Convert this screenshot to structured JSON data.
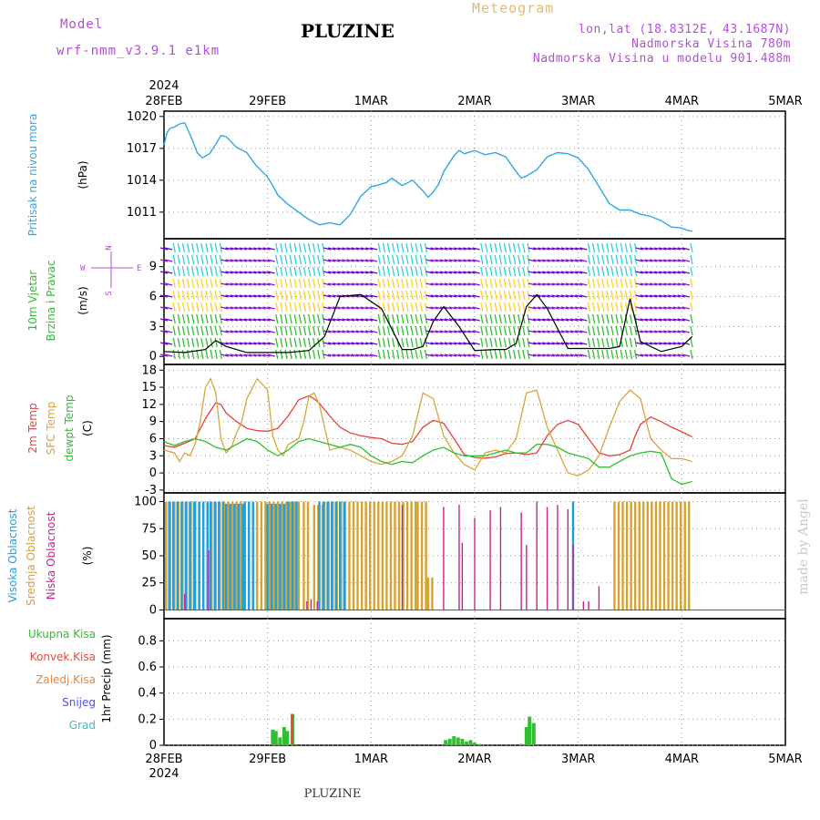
{
  "header": {
    "model_label": "Model",
    "model_name": "wrf-nmm_v3.9.1 e1km",
    "title": "PLUZINE",
    "subtitle": "Meteogram",
    "lonlat": "lon,lat (18.8312E, 43.1687N)",
    "elevation": "Nadmorska Visina 780m",
    "model_elevation": "Nadmorska Visina u modelu 901.488m",
    "footer": "PLUZINE",
    "watermark": "made by Angel"
  },
  "colors": {
    "pressure": "#2fa6e8",
    "t2m": "#e8413a",
    "sfc": "#d9a53a",
    "dew": "#2ec12e",
    "high_cloud": "#1aa0e6",
    "mid_cloud": "#d6a32e",
    "low_cloud": "#c4248e",
    "precip": "#2fbf2f",
    "conv": "#e84a3a",
    "frz": "#e8853a",
    "snow": "#5050e0",
    "hail": "#33c2c2",
    "model": "#b44fd8",
    "meteogram": "#e8b96a"
  },
  "chart_data": [
    {
      "type": "line",
      "name": "pressure",
      "ylabel": "Pritisak na nivou mora",
      "unit": "(hPa)",
      "ylim": [
        1008.5,
        1020.5
      ],
      "yticks": [
        1011,
        1014,
        1017,
        1020
      ],
      "series": [
        {
          "x": [
            0,
            0.03,
            0.06,
            0.1,
            0.15,
            0.2,
            0.26,
            0.32,
            0.37,
            0.44,
            0.5,
            0.55,
            0.6,
            0.7,
            0.8,
            0.88,
            0.93,
            1.0,
            1.05,
            1.1,
            1.2,
            1.3,
            1.4,
            1.5,
            1.55,
            1.6,
            1.65,
            1.7,
            1.8,
            1.9,
            2.0,
            2.05,
            2.15,
            2.2,
            2.3,
            2.4,
            2.5,
            2.55,
            2.6,
            2.65,
            2.7,
            2.8,
            2.85,
            2.9,
            3.0,
            3.1,
            3.2,
            3.3,
            3.4,
            3.45,
            3.5,
            3.6,
            3.7,
            3.8,
            3.9,
            4.0,
            4.1,
            4.2,
            4.3,
            4.4,
            4.5,
            4.55,
            4.6,
            4.7,
            4.8,
            4.9,
            5.0,
            5.05,
            5.1
          ],
          "y": [
            1017.3,
            1018.5,
            1018.9,
            1019.0,
            1019.3,
            1019.4,
            1018.1,
            1016.6,
            1016.1,
            1016.5,
            1017.4,
            1018.2,
            1018.1,
            1017.1,
            1016.6,
            1015.5,
            1015.0,
            1014.3,
            1013.5,
            1012.6,
            1011.7,
            1011.0,
            1010.3,
            1009.8,
            1009.9,
            1010.0,
            1009.9,
            1009.8,
            1010.8,
            1012.5,
            1013.4,
            1013.5,
            1013.8,
            1014.2,
            1013.5,
            1014.0,
            1013.0,
            1012.4,
            1012.9,
            1013.6,
            1014.8,
            1016.3,
            1016.8,
            1016.5,
            1016.8,
            1016.4,
            1016.6,
            1016.2,
            1014.8,
            1014.2,
            1014.4,
            1015.0,
            1016.2,
            1016.6,
            1016.5,
            1016.1,
            1015.0,
            1013.4,
            1011.8,
            1011.2,
            1011.2,
            1011.0,
            1010.8,
            1010.6,
            1010.2,
            1009.6,
            1009.5,
            1009.3,
            1009.2
          ]
        }
      ]
    },
    {
      "type": "scatter",
      "name": "wind",
      "ylabel": "10m Vjetar Brzina i Pravac",
      "unit": "(m/s)",
      "ylim": [
        -0.8,
        11.8
      ],
      "yticks": [
        0,
        3,
        6,
        9
      ],
      "compass": [
        "N",
        "W",
        "E",
        "S"
      ],
      "series": [
        {
          "name": "speed",
          "x": [
            0,
            0.2,
            0.4,
            0.5,
            0.6,
            0.8,
            1.0,
            1.2,
            1.3,
            1.4,
            1.55,
            1.7,
            1.9,
            2.1,
            2.3,
            2.4,
            2.5,
            2.6,
            2.7,
            2.85,
            3.0,
            3.2,
            3.3,
            3.4,
            3.5,
            3.6,
            3.7,
            3.9,
            4.1,
            4.3,
            4.4,
            4.5,
            4.6,
            4.8,
            5.0,
            5.1
          ],
          "y": [
            0.5,
            0.4,
            0.7,
            1.6,
            1.0,
            0.4,
            0.4,
            0.4,
            0.5,
            0.6,
            2.0,
            6.0,
            6.2,
            4.8,
            0.7,
            0.7,
            1.0,
            3.5,
            5.0,
            3.0,
            0.6,
            0.7,
            0.7,
            1.3,
            5.0,
            6.2,
            4.8,
            0.8,
            0.8,
            0.8,
            1.0,
            5.8,
            1.5,
            0.5,
            1.0,
            2.0
          ]
        }
      ]
    },
    {
      "type": "line",
      "name": "temperature",
      "series_labels": [
        "2m Temp",
        "SFC Temp",
        "dewpt Temp"
      ],
      "unit": "(C)",
      "ylim": [
        -3.5,
        19
      ],
      "yticks": [
        -3,
        0,
        3,
        6,
        9,
        12,
        15,
        18
      ],
      "series": [
        {
          "name": "2m Temp",
          "x": [
            0,
            0.1,
            0.2,
            0.3,
            0.4,
            0.5,
            0.55,
            0.6,
            0.7,
            0.8,
            0.9,
            1.0,
            1.1,
            1.2,
            1.3,
            1.4,
            1.45,
            1.5,
            1.6,
            1.7,
            1.8,
            1.9,
            2.0,
            2.1,
            2.2,
            2.3,
            2.4,
            2.5,
            2.6,
            2.7,
            2.8,
            2.9,
            3.0,
            3.1,
            3.2,
            3.3,
            3.4,
            3.5,
            3.6,
            3.7,
            3.8,
            3.9,
            4.0,
            4.1,
            4.2,
            4.3,
            4.4,
            4.5,
            4.55,
            4.6,
            4.7,
            4.8,
            4.9,
            5.0,
            5.1
          ],
          "y": [
            4.8,
            4.5,
            5.2,
            6.0,
            9.5,
            12.3,
            12.0,
            10.5,
            9.0,
            7.8,
            7.4,
            7.3,
            7.8,
            10.0,
            12.8,
            13.5,
            13.0,
            12.2,
            10.0,
            8.0,
            7.0,
            6.5,
            6.2,
            6.0,
            5.2,
            5.0,
            5.5,
            8.0,
            9.2,
            8.7,
            6.0,
            3.2,
            2.7,
            2.6,
            2.8,
            3.4,
            3.5,
            3.2,
            3.5,
            6.5,
            8.5,
            9.2,
            8.5,
            6.0,
            3.5,
            3.0,
            3.2,
            4.0,
            6.5,
            8.5,
            9.8,
            9.0,
            8.0,
            7.2,
            6.3
          ]
        },
        {
          "name": "SFC Temp",
          "x": [
            0,
            0.1,
            0.15,
            0.2,
            0.25,
            0.3,
            0.35,
            0.4,
            0.45,
            0.5,
            0.55,
            0.6,
            0.65,
            0.7,
            0.75,
            0.8,
            0.9,
            1.0,
            1.05,
            1.1,
            1.15,
            1.2,
            1.3,
            1.35,
            1.4,
            1.45,
            1.5,
            1.55,
            1.6,
            1.7,
            1.8,
            1.9,
            2.0,
            2.1,
            2.2,
            2.3,
            2.4,
            2.5,
            2.6,
            2.7,
            2.8,
            2.9,
            3.0,
            3.1,
            3.2,
            3.3,
            3.4,
            3.5,
            3.6,
            3.7,
            3.8,
            3.9,
            4.0,
            4.1,
            4.2,
            4.3,
            4.4,
            4.5,
            4.6,
            4.7,
            4.8,
            4.9,
            5.0,
            5.1
          ],
          "y": [
            4.0,
            3.5,
            2.0,
            3.5,
            3.0,
            5.0,
            9.0,
            15.0,
            16.5,
            14.0,
            6.0,
            3.5,
            4.5,
            7.0,
            9.0,
            13.0,
            16.5,
            14.5,
            6.5,
            4.0,
            3.0,
            5.0,
            6.0,
            9.0,
            13.5,
            14.0,
            12.0,
            8.0,
            4.0,
            4.5,
            4.0,
            3.0,
            2.0,
            1.5,
            2.0,
            3.0,
            6.5,
            14.0,
            13.0,
            6.5,
            3.5,
            1.5,
            0.5,
            3.5,
            4.0,
            3.5,
            6.0,
            14.0,
            14.5,
            8.0,
            4.0,
            0.0,
            -0.5,
            0.5,
            3.0,
            8.0,
            12.5,
            14.5,
            13.0,
            6.0,
            4.0,
            2.5,
            2.5,
            2.0
          ]
        },
        {
          "name": "dewpt Temp",
          "x": [
            0,
            0.1,
            0.2,
            0.3,
            0.4,
            0.5,
            0.6,
            0.7,
            0.8,
            0.9,
            1.0,
            1.1,
            1.2,
            1.3,
            1.4,
            1.5,
            1.6,
            1.7,
            1.8,
            1.9,
            2.0,
            2.1,
            2.2,
            2.3,
            2.4,
            2.5,
            2.6,
            2.7,
            2.8,
            2.9,
            3.0,
            3.1,
            3.2,
            3.3,
            3.4,
            3.5,
            3.6,
            3.7,
            3.8,
            3.9,
            4.0,
            4.1,
            4.2,
            4.3,
            4.4,
            4.5,
            4.6,
            4.7,
            4.8,
            4.9,
            5.0,
            5.1
          ],
          "y": [
            5.5,
            4.8,
            5.5,
            6.0,
            5.5,
            4.5,
            4.0,
            5.0,
            6.0,
            5.5,
            4.0,
            3.0,
            4.0,
            5.5,
            6.0,
            5.5,
            5.0,
            4.5,
            5.0,
            4.5,
            3.0,
            2.0,
            1.5,
            2.0,
            1.8,
            3.0,
            4.0,
            4.5,
            3.5,
            3.0,
            3.0,
            3.0,
            3.5,
            4.0,
            3.5,
            3.5,
            5.0,
            5.0,
            4.5,
            3.5,
            3.0,
            2.5,
            1.0,
            1.0,
            2.0,
            3.0,
            3.5,
            3.8,
            3.5,
            -1.0,
            -2.0,
            -1.5
          ]
        }
      ]
    },
    {
      "type": "bar",
      "name": "clouds",
      "series_labels": [
        "Visoka Oblacnost",
        "Srednja Oblacnost",
        "Niska Oblacnost"
      ],
      "unit": "(%)",
      "ylim": [
        -8,
        108
      ],
      "yticks": [
        0,
        25,
        50,
        75,
        100
      ],
      "high_spans": [
        [
          0.05,
          0.3,
          100
        ],
        [
          0.3,
          0.45,
          100
        ],
        [
          0.45,
          0.6,
          100
        ],
        [
          0.6,
          0.78,
          98
        ],
        [
          0.78,
          0.9,
          100
        ],
        [
          1.0,
          1.2,
          98
        ],
        [
          1.2,
          1.3,
          100
        ],
        [
          1.5,
          1.75,
          100
        ],
        [
          3.95,
          3.98,
          100
        ]
      ],
      "mid_spans": [
        [
          0.02,
          1.32,
          100
        ],
        [
          1.35,
          1.4,
          100
        ],
        [
          1.45,
          1.55,
          97
        ],
        [
          1.55,
          1.75,
          100
        ],
        [
          1.75,
          2.45,
          100
        ],
        [
          2.45,
          2.55,
          100
        ],
        [
          2.55,
          2.6,
          30
        ],
        [
          4.35,
          5.1,
          100
        ]
      ],
      "low_bars": [
        [
          0.2,
          15
        ],
        [
          0.43,
          55
        ],
        [
          1.38,
          8
        ],
        [
          1.42,
          10
        ],
        [
          1.48,
          8
        ],
        [
          2.3,
          97
        ],
        [
          2.7,
          95
        ],
        [
          2.85,
          97
        ],
        [
          2.88,
          62
        ],
        [
          3.0,
          85
        ],
        [
          3.15,
          92
        ],
        [
          3.25,
          95
        ],
        [
          3.45,
          90
        ],
        [
          3.5,
          60
        ],
        [
          3.6,
          100
        ],
        [
          3.7,
          95
        ],
        [
          3.8,
          97
        ],
        [
          3.9,
          93
        ],
        [
          3.95,
          60
        ],
        [
          4.05,
          8
        ],
        [
          4.1,
          8
        ],
        [
          4.2,
          22
        ]
      ]
    },
    {
      "type": "bar",
      "name": "precip",
      "ylabel": "1hr Precip",
      "unit": "(mm)",
      "legend": [
        "Ukupna Kisa",
        "Konvek.Kisa",
        "Zaledj.Kisa",
        "Snijeg",
        "Grad"
      ],
      "ylim": [
        0,
        0.97
      ],
      "yticks": [
        0,
        0.2,
        0.4,
        0.6,
        0.8
      ],
      "bars": [
        [
          1.05,
          0.12
        ],
        [
          1.08,
          0.11
        ],
        [
          1.12,
          0.06
        ],
        [
          1.16,
          0.14
        ],
        [
          1.19,
          0.11
        ],
        [
          1.24,
          0.24
        ],
        [
          2.72,
          0.04
        ],
        [
          2.76,
          0.05
        ],
        [
          2.8,
          0.07
        ],
        [
          2.84,
          0.06
        ],
        [
          2.88,
          0.05
        ],
        [
          2.92,
          0.03
        ],
        [
          2.96,
          0.04
        ],
        [
          3.0,
          0.02
        ],
        [
          3.05,
          0.01
        ],
        [
          3.45,
          0.01
        ],
        [
          3.5,
          0.14
        ],
        [
          3.53,
          0.22
        ],
        [
          3.57,
          0.17
        ]
      ],
      "conv_bars": [
        [
          1.24,
          0.24
        ]
      ]
    }
  ],
  "axes": {
    "year": "2024",
    "xticks": [
      "28FEB",
      "29FEB",
      "1MAR",
      "2MAR",
      "3MAR",
      "4MAR",
      "5MAR"
    ]
  }
}
